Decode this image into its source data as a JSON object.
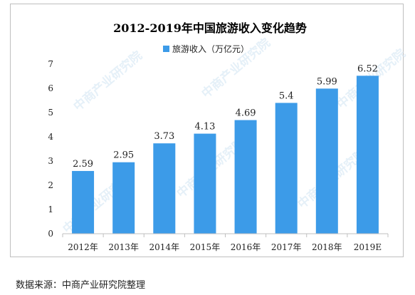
{
  "chart_data": {
    "type": "bar",
    "title": "2012-2019年中国旅游收入变化趋势",
    "legend": {
      "label": "旅游收入（万亿元）",
      "position": "top-center"
    },
    "categories": [
      "2012年",
      "2013年",
      "2014年",
      "2015年",
      "2016年",
      "2017年",
      "2018年",
      "2019E"
    ],
    "series": [
      {
        "name": "旅游收入（万亿元）",
        "values": [
          2.59,
          2.95,
          3.73,
          4.13,
          4.69,
          5.4,
          5.99,
          6.52
        ],
        "data_labels": [
          "2.59",
          "2.95",
          "3.73",
          "4.13",
          "4.69",
          "5.4",
          "5.99",
          "6.52"
        ]
      }
    ],
    "ylim": [
      0,
      7
    ],
    "yticks": [
      "0",
      "1",
      "2",
      "3",
      "4",
      "5",
      "6",
      "7"
    ],
    "grid": false,
    "bar_color": "#3c9be8"
  },
  "source_note": "数据来源：中商产业研究院整理",
  "watermark_text": "中商产业研究院"
}
